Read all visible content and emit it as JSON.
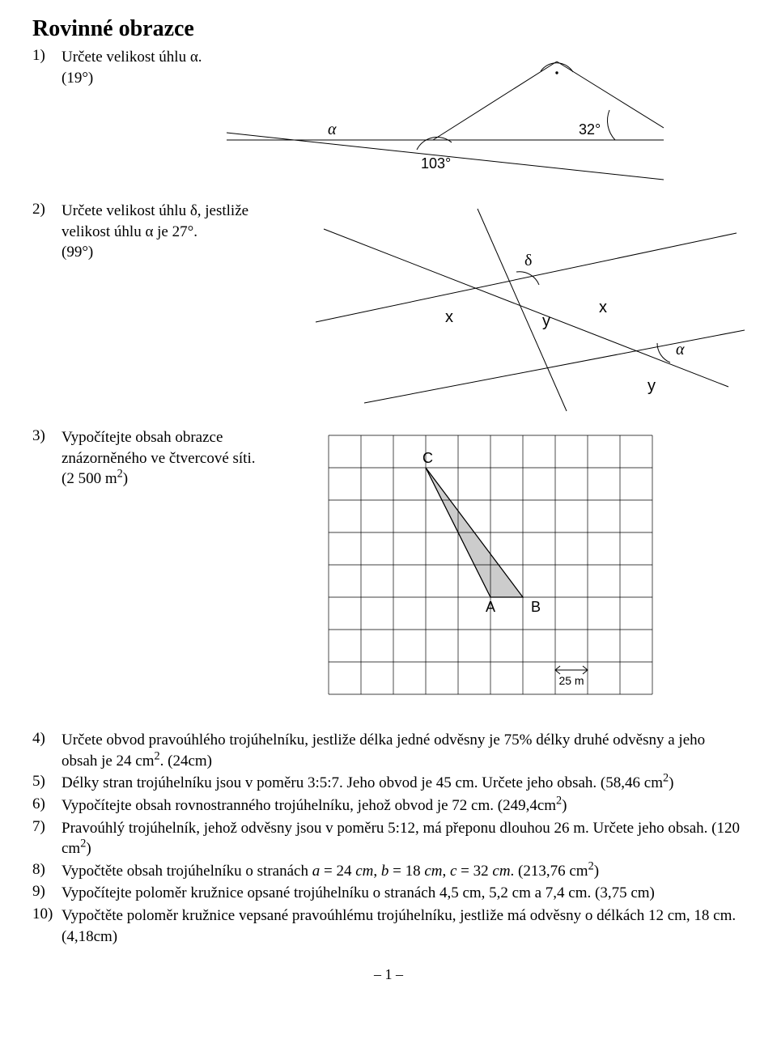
{
  "title": "Rovinné obrazce",
  "footer": "– 1 –",
  "q1": {
    "num": "1)",
    "text": "Určete velikost úhlu α.",
    "ans": "(19°)",
    "fig": {
      "alpha": "α",
      "ang32": "32°",
      "ang103": "103°",
      "line_color": "#000000",
      "arc_color": "#000000",
      "bg_color": "#ffffff"
    }
  },
  "q2": {
    "num": "2)",
    "text": "Určete velikost úhlu δ, jestliže velikost úhlu α je 27°.",
    "ans": "(99°)",
    "fig": {
      "delta": "δ",
      "alpha": "α",
      "x1": "x",
      "x2": "x",
      "y1": "y",
      "y2": "y",
      "line_color": "#000000"
    }
  },
  "q3": {
    "num": "3)",
    "text": "Vypočítejte obsah obrazce znázorněného ve čtvercové síti.",
    "ans": "(2 500 m",
    "ans_sup": "2",
    "ans_close": ")",
    "fig": {
      "grid_color": "#000000",
      "fill_color": "#cccccc",
      "A": "A",
      "B": "B",
      "C": "C",
      "scale_label": "25 m",
      "cols": 10,
      "rows": 8,
      "cell": 40,
      "triangle": {
        "C": [
          3,
          1
        ],
        "A": [
          5,
          5
        ],
        "B": [
          6,
          5
        ]
      },
      "scale_cells": {
        "col": 7,
        "row": 7
      }
    }
  },
  "q4": {
    "num": "4)",
    "text_a": "Určete obvod pravoúhlého trojúhelníku, jestliže délka jedné odvěsny je 75% délky druhé odvěsny a jeho obsah je 24 cm",
    "sup": "2",
    "text_b": ". (24cm)"
  },
  "q5": {
    "num": "5)",
    "text_a": "Délky stran trojúhelníku jsou v poměru 3:5:7. Jeho obvod je 45 cm. Určete jeho obsah. (58,46 cm",
    "sup": "2",
    "text_b": ")"
  },
  "q6": {
    "num": "6)",
    "text_a": "Vypočítejte obsah rovnostranného trojúhelníku, jehož obvod je 72 cm. (249,4cm",
    "sup": "2",
    "text_b": ")"
  },
  "q7": {
    "num": "7)",
    "text_a": "Pravoúhlý trojúhelník, jehož odvěsny jsou v poměru 5:12, má přeponu dlouhou 26 m. Určete jeho obsah. (120 cm",
    "sup": "2",
    "text_b": ")"
  },
  "q8": {
    "num": "8)",
    "text_a": "Vypočtěte obsah trojúhelníku o stranách ",
    "ia": "a",
    "text_b": " = 24 ",
    "icm1": "cm",
    "text_c": ", ",
    "ib": "b",
    "text_d": " = 18 ",
    "icm2": "cm",
    "text_e": ", ",
    "ic": "c",
    "text_f": " = 32 ",
    "icm3": "cm",
    "text_g": ". (213,76 cm",
    "sup": "2",
    "text_h": ")"
  },
  "q9": {
    "num": "9)",
    "text": "Vypočítejte poloměr kružnice opsané trojúhelníku o stranách 4,5 cm, 5,2 cm a 7,4 cm. (3,75 cm)"
  },
  "q10": {
    "num": "10)",
    "text": "Vypočtěte poloměr kružnice vepsané pravoúhlému trojúhelníku, jestliže má odvěsny o délkách 12 cm, 18 cm. (4,18cm)"
  }
}
